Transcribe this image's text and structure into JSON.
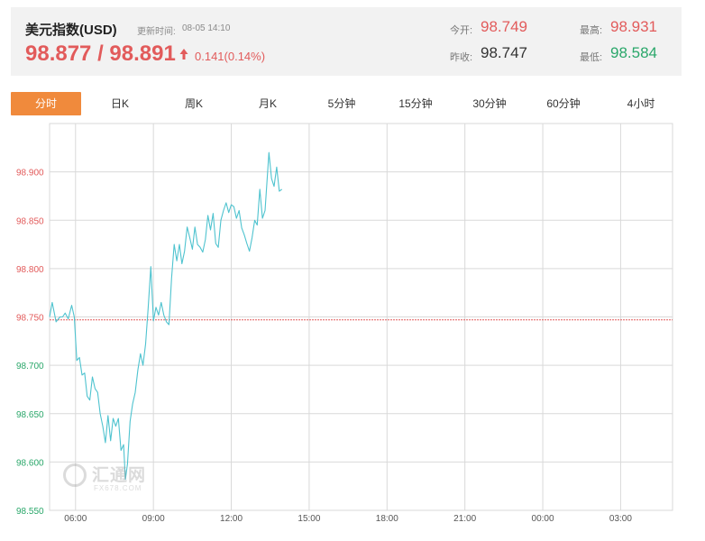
{
  "header": {
    "title": "美元指数(USD)",
    "update_label": "更新时间:",
    "update_time": "08-05 14:10",
    "price": "98.877 / 98.891",
    "change": "0.141(0.14%)",
    "stats": {
      "open_label": "今开:",
      "open_value": "98.749",
      "prev_close_label": "昨收:",
      "prev_close_value": "98.747",
      "high_label": "最高:",
      "high_value": "98.931",
      "low_label": "最低:",
      "low_value": "98.584"
    }
  },
  "tabs": [
    "分时",
    "日K",
    "周K",
    "月K",
    "5分钟",
    "15分钟",
    "30分钟",
    "60分钟",
    "4小时"
  ],
  "active_tab": "分时",
  "watermark": {
    "text": "汇通网",
    "sub": "FX678.COM"
  },
  "colors": {
    "up": "#e25b5b",
    "down": "#2aa76a",
    "line": "#4fc3cf",
    "accent": "#f08a3c",
    "grid": "#d9d9d9"
  },
  "chart_data": {
    "type": "line",
    "xlabel": "",
    "ylabel": "",
    "x_ticks": [
      "06:00",
      "09:00",
      "12:00",
      "15:00",
      "18:00",
      "21:00",
      "00:00",
      "03:00"
    ],
    "y_ticks": [
      "98.900",
      "98.850",
      "98.800",
      "98.750",
      "98.700",
      "98.650",
      "98.600",
      "98.550"
    ],
    "ylim": [
      98.55,
      98.95
    ],
    "x_range_hours": [
      5.0,
      29.0
    ],
    "reference_line": {
      "value": 98.747,
      "label": "昨收"
    },
    "grid": true,
    "series": [
      {
        "values": [
          [
            5.0,
            98.75
          ],
          [
            5.1,
            98.765
          ],
          [
            5.25,
            98.745
          ],
          [
            5.4,
            98.75
          ],
          [
            5.5,
            98.75
          ],
          [
            5.6,
            98.754
          ],
          [
            5.72,
            98.748
          ],
          [
            5.85,
            98.762
          ],
          [
            5.95,
            98.75
          ],
          [
            6.05,
            98.705
          ],
          [
            6.15,
            98.708
          ],
          [
            6.25,
            98.69
          ],
          [
            6.35,
            98.692
          ],
          [
            6.45,
            98.668
          ],
          [
            6.55,
            98.664
          ],
          [
            6.65,
            98.688
          ],
          [
            6.75,
            98.676
          ],
          [
            6.85,
            98.672
          ],
          [
            6.95,
            98.65
          ],
          [
            7.05,
            98.637
          ],
          [
            7.15,
            98.62
          ],
          [
            7.25,
            98.648
          ],
          [
            7.35,
            98.622
          ],
          [
            7.45,
            98.645
          ],
          [
            7.55,
            98.637
          ],
          [
            7.65,
            98.645
          ],
          [
            7.75,
            98.612
          ],
          [
            7.85,
            98.618
          ],
          [
            7.92,
            98.582
          ],
          [
            8.0,
            98.598
          ],
          [
            8.1,
            98.642
          ],
          [
            8.2,
            98.66
          ],
          [
            8.3,
            98.672
          ],
          [
            8.4,
            98.695
          ],
          [
            8.5,
            98.712
          ],
          [
            8.6,
            98.7
          ],
          [
            8.7,
            98.722
          ],
          [
            8.8,
            98.76
          ],
          [
            8.9,
            98.802
          ],
          [
            9.0,
            98.746
          ],
          [
            9.1,
            98.76
          ],
          [
            9.2,
            98.752
          ],
          [
            9.3,
            98.765
          ],
          [
            9.4,
            98.752
          ],
          [
            9.5,
            98.745
          ],
          [
            9.6,
            98.742
          ],
          [
            9.7,
            98.79
          ],
          [
            9.8,
            98.825
          ],
          [
            9.9,
            98.808
          ],
          [
            10.0,
            98.825
          ],
          [
            10.1,
            98.805
          ],
          [
            10.2,
            98.818
          ],
          [
            10.3,
            98.843
          ],
          [
            10.4,
            98.832
          ],
          [
            10.5,
            98.82
          ],
          [
            10.6,
            98.843
          ],
          [
            10.7,
            98.825
          ],
          [
            10.8,
            98.822
          ],
          [
            10.9,
            98.817
          ],
          [
            11.0,
            98.83
          ],
          [
            11.1,
            98.855
          ],
          [
            11.2,
            98.84
          ],
          [
            11.3,
            98.857
          ],
          [
            11.4,
            98.826
          ],
          [
            11.5,
            98.822
          ],
          [
            11.6,
            98.85
          ],
          [
            11.7,
            98.86
          ],
          [
            11.8,
            98.868
          ],
          [
            11.9,
            98.858
          ],
          [
            12.0,
            98.866
          ],
          [
            12.1,
            98.864
          ],
          [
            12.2,
            98.852
          ],
          [
            12.3,
            98.86
          ],
          [
            12.4,
            98.842
          ],
          [
            12.5,
            98.835
          ],
          [
            12.6,
            98.826
          ],
          [
            12.7,
            98.818
          ],
          [
            12.8,
            98.832
          ],
          [
            12.9,
            98.85
          ],
          [
            13.0,
            98.845
          ],
          [
            13.1,
            98.882
          ],
          [
            13.2,
            98.852
          ],
          [
            13.3,
            98.86
          ],
          [
            13.45,
            98.92
          ],
          [
            13.55,
            98.893
          ],
          [
            13.65,
            98.885
          ],
          [
            13.75,
            98.905
          ],
          [
            13.85,
            98.88
          ],
          [
            13.95,
            98.882
          ]
        ]
      }
    ]
  }
}
